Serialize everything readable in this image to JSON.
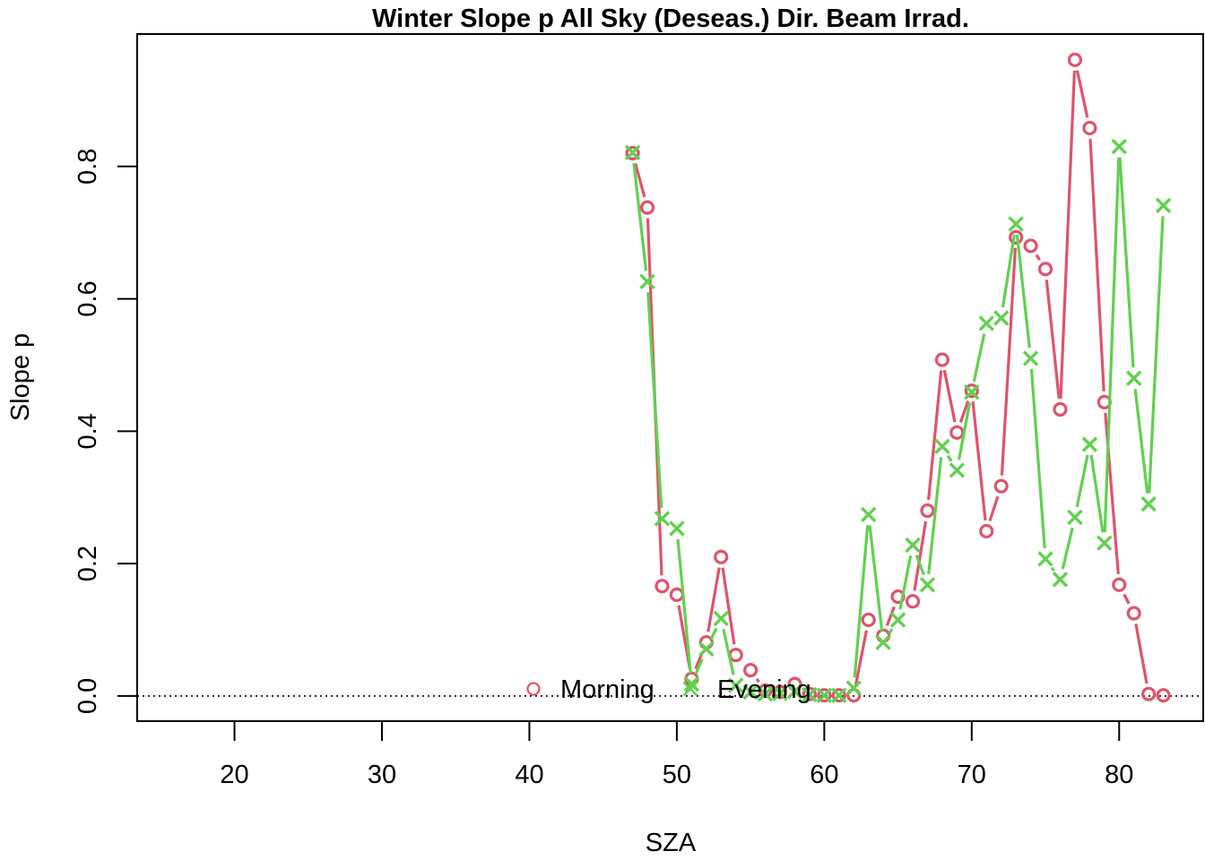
{
  "chart_data": {
    "type": "line",
    "title": "Winter Slope p All Sky (Deseas.) Dir. Beam Irrad.",
    "xlabel": "SZA",
    "ylabel": "Slope p",
    "xlim": [
      13.4,
      85.7
    ],
    "ylim": [
      -0.038,
      1.0
    ],
    "x_ticks": [
      20,
      30,
      40,
      50,
      60,
      70,
      80
    ],
    "y_ticks": [
      0.0,
      0.2,
      0.4,
      0.6,
      0.8
    ],
    "x_tick_labels": [
      "20",
      "30",
      "40",
      "50",
      "60",
      "70",
      "80"
    ],
    "y_tick_labels": [
      "0.0",
      "0.2",
      "0.4",
      "0.6",
      "0.8"
    ],
    "reference_line": {
      "y": 0,
      "style": "dotted"
    },
    "legend": {
      "placement": "bottom-center",
      "entries": [
        "Morning",
        "Evening"
      ]
    },
    "series": [
      {
        "name": "Morning",
        "marker": "circle",
        "color": "#DF536B",
        "x": [
          47,
          48,
          49,
          50,
          51,
          52,
          53,
          54,
          55,
          56,
          57,
          58,
          59,
          60,
          61,
          62,
          63,
          64,
          65,
          66,
          67,
          68,
          69,
          70,
          71,
          72,
          73,
          74,
          75,
          76,
          77,
          78,
          79,
          80,
          81,
          82,
          83
        ],
        "values": [
          0.82,
          0.738,
          0.166,
          0.153,
          0.026,
          0.081,
          0.21,
          0.062,
          0.039,
          0.008,
          0.006,
          0.018,
          0.003,
          0.001,
          0.001,
          0.001,
          0.115,
          0.091,
          0.15,
          0.143,
          0.28,
          0.508,
          0.398,
          0.461,
          0.249,
          0.317,
          0.693,
          0.68,
          0.645,
          0.433,
          0.961,
          0.858,
          0.444,
          0.168,
          0.125,
          0.003,
          0.001
        ]
      },
      {
        "name": "Evening",
        "marker": "cross",
        "color": "#61D04F",
        "x": [
          47,
          48,
          49,
          50,
          51,
          52,
          53,
          54,
          55,
          56,
          57,
          58,
          59,
          60,
          61,
          62,
          63,
          64,
          65,
          66,
          67,
          68,
          69,
          70,
          71,
          72,
          73,
          74,
          75,
          76,
          77,
          78,
          79,
          80,
          81,
          82,
          83
        ],
        "values": [
          0.821,
          0.626,
          0.268,
          0.253,
          0.018,
          0.071,
          0.117,
          0.016,
          0.006,
          0.003,
          0.004,
          0.007,
          0.002,
          0.001,
          0.001,
          0.012,
          0.274,
          0.081,
          0.115,
          0.228,
          0.168,
          0.377,
          0.341,
          0.459,
          0.563,
          0.571,
          0.713,
          0.51,
          0.207,
          0.176,
          0.27,
          0.38,
          0.231,
          0.83,
          0.48,
          0.29,
          0.741
        ]
      }
    ]
  }
}
